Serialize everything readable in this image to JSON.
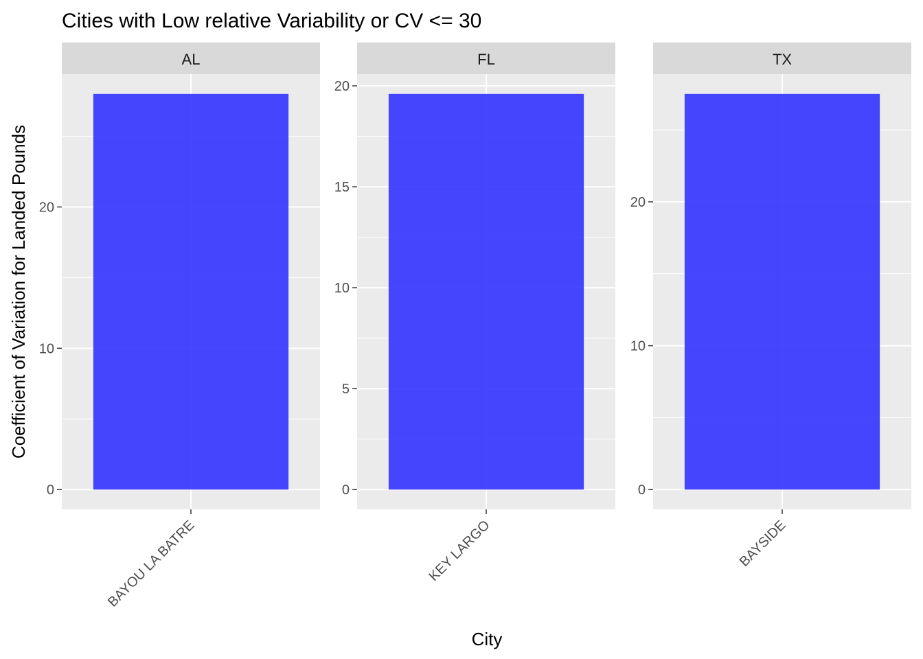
{
  "chart_data": {
    "type": "bar",
    "title": "Cities with Low relative Variability or CV <= 30",
    "xlabel": "City",
    "ylabel": "Coefficient of Variation for Landed Pounds",
    "facets": [
      {
        "strip": "AL",
        "categories": [
          "BAYOU LA BATRE"
        ],
        "values": [
          28.0
        ],
        "ylim": [
          -1.4,
          29.4
        ],
        "yticks": [
          0,
          10,
          20
        ],
        "yticks_minor": [
          5,
          15,
          25
        ]
      },
      {
        "strip": "FL",
        "categories": [
          "KEY LARGO"
        ],
        "values": [
          19.6
        ],
        "ylim": [
          -0.98,
          20.58
        ],
        "yticks": [
          0,
          5,
          10,
          15,
          20
        ],
        "yticks_minor": [
          2.5,
          7.5,
          12.5,
          17.5
        ]
      },
      {
        "strip": "TX",
        "categories": [
          "BAYSIDE"
        ],
        "values": [
          27.5
        ],
        "ylim": [
          -1.375,
          28.875
        ],
        "yticks": [
          0,
          10,
          20
        ],
        "yticks_minor": [
          5,
          15,
          25
        ]
      }
    ],
    "bar_color": "#3333ff",
    "panel_background": "#ebebeb",
    "strip_background": "#d9d9d9",
    "grid": true,
    "legend": "none"
  }
}
